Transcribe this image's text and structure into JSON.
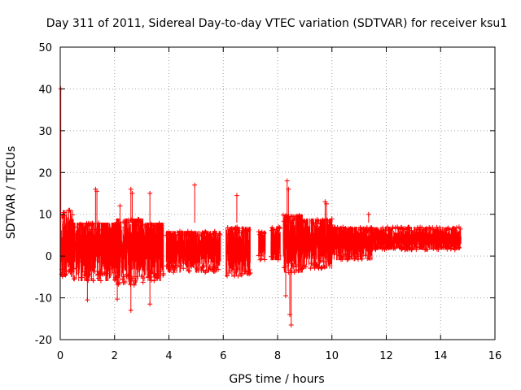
{
  "chart_data": {
    "type": "scatter",
    "title": "Day 311 of 2011, Sidereal Day-to-day VTEC variation (SDTVAR) for receiver ksu1",
    "xlabel": "GPS time / hours",
    "ylabel": "SDTVAR / TECUs",
    "xlim": [
      0,
      16
    ],
    "ylim": [
      -20,
      50
    ],
    "xticks": [
      0,
      2,
      4,
      6,
      8,
      10,
      12,
      14,
      16
    ],
    "yticks": [
      -20,
      -10,
      0,
      10,
      20,
      30,
      40,
      50
    ],
    "grid": true,
    "marker": "+",
    "color": "#ff0000",
    "series": [
      {
        "name": "SDTVAR",
        "clusters": [
          {
            "x": [
              0.0,
              0.5
            ],
            "mean": 2.5,
            "low": -5,
            "high": 11
          },
          {
            "x": [
              0.5,
              1.15
            ],
            "mean": 2.0,
            "low": -6,
            "high": 8
          },
          {
            "x": [
              1.15,
              2.05
            ],
            "mean": 2.0,
            "low": -6,
            "high": 8
          },
          {
            "x": [
              2.05,
              3.05
            ],
            "mean": 2.0,
            "low": -7,
            "high": 9
          },
          {
            "x": [
              3.05,
              3.8
            ],
            "mean": 2.0,
            "low": -6,
            "high": 8
          },
          {
            "x": [
              3.9,
              4.6
            ],
            "mean": 2.0,
            "low": -4,
            "high": 6
          },
          {
            "x": [
              4.6,
              5.9
            ],
            "mean": 2.0,
            "low": -4,
            "high": 6
          },
          {
            "x": [
              6.1,
              7.0
            ],
            "mean": 1.5,
            "low": -5,
            "high": 7
          },
          {
            "x": [
              7.3,
              7.55
            ],
            "mean": 3.0,
            "low": -1,
            "high": 6
          },
          {
            "x": [
              7.75,
              8.1
            ],
            "mean": 3.0,
            "low": -1,
            "high": 7
          },
          {
            "x": [
              8.2,
              9.0
            ],
            "mean": 3.5,
            "low": -4,
            "high": 10
          },
          {
            "x": [
              9.0,
              10.0
            ],
            "mean": 3.5,
            "low": -3,
            "high": 9
          },
          {
            "x": [
              10.0,
              11.5
            ],
            "mean": 3.5,
            "low": -1,
            "high": 7
          },
          {
            "x": [
              11.5,
              14.75
            ],
            "mean": 4.0,
            "low": 1.5,
            "high": 7
          }
        ],
        "outliers": [
          {
            "x": 0.02,
            "y": 40
          },
          {
            "x": 1.3,
            "y": 16
          },
          {
            "x": 1.35,
            "y": 15.5
          },
          {
            "x": 2.2,
            "y": 12
          },
          {
            "x": 2.6,
            "y": 16
          },
          {
            "x": 2.65,
            "y": 15
          },
          {
            "x": 3.3,
            "y": 15
          },
          {
            "x": 2.6,
            "y": -13
          },
          {
            "x": 3.3,
            "y": -11.5
          },
          {
            "x": 4.95,
            "y": 17
          },
          {
            "x": 6.5,
            "y": 14.5
          },
          {
            "x": 8.35,
            "y": 18
          },
          {
            "x": 8.4,
            "y": 16
          },
          {
            "x": 8.5,
            "y": -16.5
          },
          {
            "x": 8.45,
            "y": -14
          },
          {
            "x": 8.3,
            "y": -9.5
          },
          {
            "x": 9.75,
            "y": 13
          },
          {
            "x": 9.8,
            "y": 12.5
          },
          {
            "x": 11.35,
            "y": 10
          },
          {
            "x": 1.0,
            "y": -10.5
          },
          {
            "x": 2.1,
            "y": -10.3
          }
        ]
      }
    ]
  }
}
